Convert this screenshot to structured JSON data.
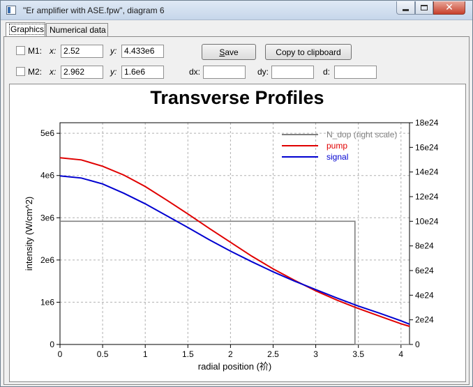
{
  "window": {
    "title": "\"Er amplifier with ASE.fpw\", diagram 6"
  },
  "tabs": [
    {
      "label": "Graphics",
      "active": true
    },
    {
      "label": "Numerical data",
      "active": false
    }
  ],
  "markers": {
    "m1": {
      "label": "M1:",
      "x_label": "x:",
      "x_value": "2.52",
      "y_label": "y:",
      "y_value": "4.433e6"
    },
    "m2": {
      "label": "M2:",
      "x_label": "x:",
      "x_value": "2.962",
      "y_label": "y:",
      "y_value": "1.6e6"
    },
    "dx_label": "dx:",
    "dx_value": "",
    "dy_label": "dy:",
    "dy_value": "",
    "d_label": "d:",
    "d_value": ""
  },
  "buttons": {
    "save": "Save",
    "copy": "Copy to clipboard"
  },
  "chart_data": {
    "type": "line",
    "title": "Transverse Profiles",
    "xlabel": "radial position (祄)",
    "ylabel": "intensity (W/cm^2)",
    "xlim": [
      0,
      4.1
    ],
    "ylim": [
      0,
      5250000
    ],
    "y2lim": [
      0,
      1.8e+25
    ],
    "x_ticks": [
      "0",
      "0.5",
      "1",
      "1.5",
      "2",
      "2.5",
      "3",
      "3.5",
      "4"
    ],
    "y_ticks": [
      "0",
      "1e6",
      "2e6",
      "3e6",
      "4e6",
      "5e6"
    ],
    "y2_ticks": [
      "0",
      "2e24",
      "4e24",
      "6e24",
      "8e24",
      "10e24",
      "12e24",
      "14e24",
      "16e24",
      "18e24"
    ],
    "grid": true,
    "legend_position": "top-right",
    "series": [
      {
        "name": "N_dop (right scale)",
        "axis": "right",
        "color": "#808080",
        "x": [
          0,
          3.46,
          3.46,
          3.47,
          3.47,
          4.1
        ],
        "y": [
          1e+25,
          1e+25,
          0,
          0,
          0,
          0
        ]
      },
      {
        "name": "pump",
        "axis": "left",
        "color": "#e00000",
        "x": [
          0,
          0.25,
          0.5,
          0.75,
          1.0,
          1.25,
          1.5,
          1.75,
          2.0,
          2.25,
          2.5,
          2.75,
          3.0,
          3.25,
          3.5,
          3.75,
          4.0,
          4.1
        ],
        "y": [
          4420000,
          4370000,
          4220000,
          4010000,
          3740000,
          3420000,
          3090000,
          2750000,
          2420000,
          2090000,
          1790000,
          1520000,
          1270000,
          1050000,
          850000,
          670000,
          490000,
          430000
        ]
      },
      {
        "name": "signal",
        "axis": "left",
        "color": "#0000d0",
        "x": [
          0,
          0.25,
          0.5,
          0.75,
          1.0,
          1.25,
          1.5,
          1.75,
          2.0,
          2.25,
          2.5,
          2.75,
          3.0,
          3.25,
          3.5,
          3.75,
          4.0,
          4.1
        ],
        "y": [
          3990000,
          3940000,
          3800000,
          3580000,
          3330000,
          3050000,
          2770000,
          2480000,
          2210000,
          1960000,
          1720000,
          1500000,
          1300000,
          1100000,
          910000,
          740000,
          560000,
          480000
        ]
      }
    ]
  }
}
